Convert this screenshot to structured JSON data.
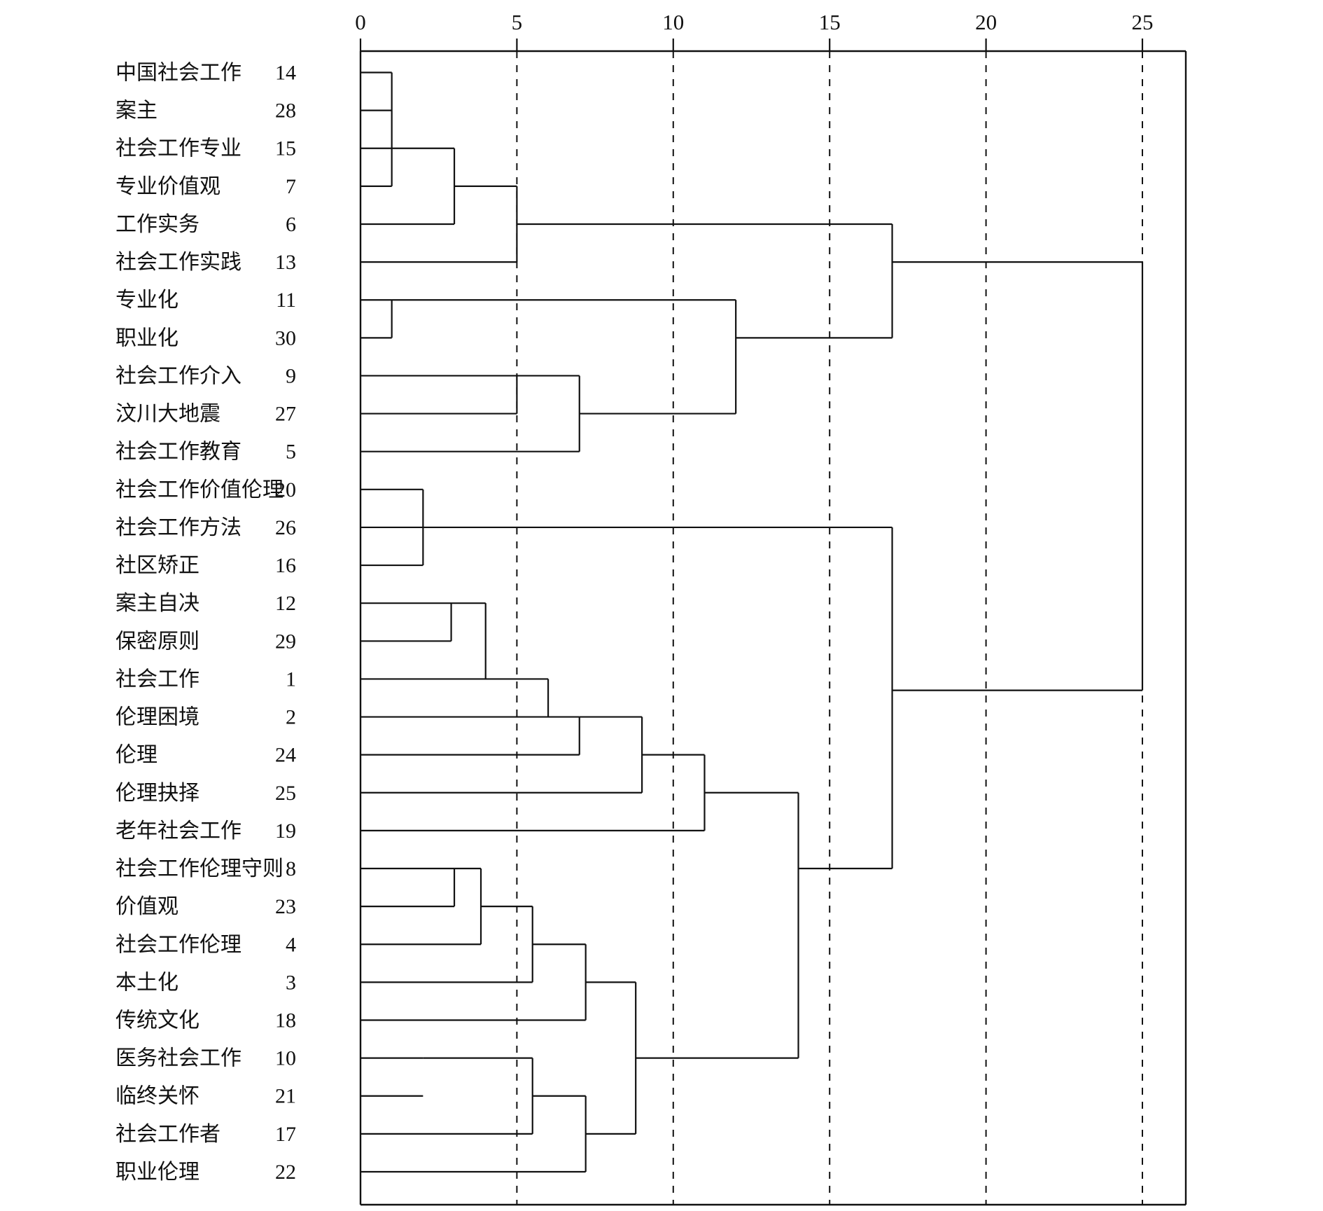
{
  "figure": {
    "background": "#ffffff",
    "line_color": "#111111"
  },
  "chart_data": {
    "type": "dendrogram",
    "orientation": "horizontal",
    "title": "",
    "axis": {
      "label": "",
      "min": 0,
      "max": 25,
      "ticks": [
        0,
        5,
        10,
        15,
        20,
        25
      ],
      "gridlines": "vertical dashed at 5,10,15,20,25",
      "legend_position": "none"
    },
    "leaves": [
      {
        "row": 1,
        "label": "中国社会工作",
        "num": "14",
        "merge_height": 1.0
      },
      {
        "row": 2,
        "label": "案主",
        "num": "28",
        "merge_height": 1.0
      },
      {
        "row": 3,
        "label": "社会工作专业",
        "num": "15",
        "merge_height": 3.0
      },
      {
        "row": 4,
        "label": "专业价值观",
        "num": "7",
        "merge_height": 1.0
      },
      {
        "row": 5,
        "label": "工作实务",
        "num": "6",
        "merge_height": 3.0
      },
      {
        "row": 6,
        "label": "社会工作实践",
        "num": "13",
        "merge_height": 5.0
      },
      {
        "row": 7,
        "label": "专业化",
        "num": "11",
        "merge_height": 12.0
      },
      {
        "row": 8,
        "label": "职业化",
        "num": "30",
        "merge_height": 1.0
      },
      {
        "row": 9,
        "label": "社会工作介入",
        "num": "9",
        "merge_height": 7.0
      },
      {
        "row": 10,
        "label": "汶川大地震",
        "num": "27",
        "merge_height": 5.0
      },
      {
        "row": 11,
        "label": "社会工作教育",
        "num": "5",
        "merge_height": 7.0
      },
      {
        "row": 12,
        "label": "社会工作价值伦理",
        "num": "20",
        "merge_height": 2.0
      },
      {
        "row": 13,
        "label": "社会工作方法",
        "num": "26",
        "merge_height": 17.0
      },
      {
        "row": 14,
        "label": "社区矫正",
        "num": "16",
        "merge_height": 2.0
      },
      {
        "row": 15,
        "label": "案主自决",
        "num": "12",
        "merge_height": 4.0
      },
      {
        "row": 16,
        "label": "保密原则",
        "num": "29",
        "merge_height": 2.9
      },
      {
        "row": 17,
        "label": "社会工作",
        "num": "1",
        "merge_height": 6.0
      },
      {
        "row": 18,
        "label": "伦理困境",
        "num": "2",
        "merge_height": 7.0
      },
      {
        "row": 19,
        "label": "伦理",
        "num": "24",
        "merge_height": 7.0
      },
      {
        "row": 20,
        "label": "伦理抉择",
        "num": "25",
        "merge_height": 9.0
      },
      {
        "row": 21,
        "label": "老年社会工作",
        "num": "19",
        "merge_height": 11.0
      },
      {
        "row": 22,
        "label": "社会工作伦理守则",
        "num": "8",
        "merge_height": 3.0
      },
      {
        "row": 23,
        "label": "价值观",
        "num": "23",
        "merge_height": 3.0
      },
      {
        "row": 24,
        "label": "社会工作伦理",
        "num": "4",
        "merge_height": 3.85
      },
      {
        "row": 25,
        "label": "本土化",
        "num": "3",
        "merge_height": 5.5
      },
      {
        "row": 26,
        "label": "传统文化",
        "num": "18",
        "merge_height": 7.2
      },
      {
        "row": 27,
        "label": "医务社会工作",
        "num": "10",
        "merge_height": 2.0
      },
      {
        "row": 28,
        "label": "临终关怀",
        "num": "21",
        "merge_height": 2.0
      },
      {
        "row": 29,
        "label": "社会工作者",
        "num": "17",
        "merge_height": 5.5
      },
      {
        "row": 30,
        "label": "职业伦理",
        "num": "22",
        "merge_height": 7.2
      }
    ],
    "links": {
      "verticals": [
        {
          "height": 1.0,
          "top_row": 1,
          "bottom_row": 4
        },
        {
          "height": 3.0,
          "top_row": 3,
          "bottom_row": 5
        },
        {
          "height": 5.0,
          "top_row": 4,
          "bottom_row": 6
        },
        {
          "height": 1.0,
          "top_row": 7,
          "bottom_row": 8
        },
        {
          "height": 5.0,
          "top_row": 9,
          "bottom_row": 10
        },
        {
          "height": 7.0,
          "top_row": 9,
          "bottom_row": 11
        },
        {
          "height": 12.0,
          "top_row": 7,
          "bottom_row": 10
        },
        {
          "height": 17.0,
          "top_row": 5,
          "bottom_row": 8
        },
        {
          "height": 2.0,
          "top_row": 12,
          "bottom_row": 14
        },
        {
          "height": 2.9,
          "top_row": 15,
          "bottom_row": 16
        },
        {
          "height": 4.0,
          "top_row": 15,
          "bottom_row": 17
        },
        {
          "height": 6.0,
          "top_row": 17,
          "bottom_row": 18
        },
        {
          "height": 7.0,
          "top_row": 18,
          "bottom_row": 19
        },
        {
          "height": 9.0,
          "top_row": 18,
          "bottom_row": 20
        },
        {
          "height": 11.0,
          "top_row": 19,
          "bottom_row": 21
        },
        {
          "height": 14.0,
          "top_row": 20,
          "bottom_row": 27
        },
        {
          "height": 3.0,
          "top_row": 22,
          "bottom_row": 23
        },
        {
          "height": 3.85,
          "top_row": 22,
          "bottom_row": 24
        },
        {
          "height": 5.5,
          "top_row": 23,
          "bottom_row": 25
        },
        {
          "height": 7.2,
          "top_row": 24,
          "bottom_row": 26
        },
        {
          "height": 8.8,
          "top_row": 25,
          "bottom_row": 29
        },
        {
          "height": 5.5,
          "top_row": 27,
          "bottom_row": 29
        },
        {
          "height": 7.2,
          "top_row": 28,
          "bottom_row": 30
        },
        {
          "height": 17.0,
          "top_row": 13,
          "bottom_row": 22
        },
        {
          "height": 25.0,
          "top_row": 6,
          "bottom_row": 17.3
        }
      ],
      "connectors": [
        {
          "row": 4,
          "from": 3.0,
          "to": 5.0
        },
        {
          "row": 5,
          "from": 5.0,
          "to": 17.0
        },
        {
          "row": 10,
          "from": 7.0,
          "to": 12.0
        },
        {
          "row": 8,
          "from": 12.0,
          "to": 17.0
        },
        {
          "row": 6,
          "from": 17.0,
          "to": 25.0
        },
        {
          "row": 18,
          "from": 7.0,
          "to": 9.0
        },
        {
          "row": 19,
          "from": 9.0,
          "to": 11.0
        },
        {
          "row": 20,
          "from": 11.0,
          "to": 14.0
        },
        {
          "row": 22,
          "from": 3.0,
          "to": 3.85
        },
        {
          "row": 23,
          "from": 3.85,
          "to": 5.5
        },
        {
          "row": 24,
          "from": 5.5,
          "to": 7.2
        },
        {
          "row": 25,
          "from": 7.2,
          "to": 8.8
        },
        {
          "row": 27,
          "from": 2.0,
          "to": 5.5
        },
        {
          "row": 28,
          "from": 5.5,
          "to": 7.2
        },
        {
          "row": 29,
          "from": 7.2,
          "to": 8.8
        },
        {
          "row": 27,
          "from": 8.8,
          "to": 14.0
        },
        {
          "row": 22,
          "from": 14.0,
          "to": 17.0
        },
        {
          "row": 17.3,
          "from": 17.0,
          "to": 25.0
        }
      ]
    }
  }
}
